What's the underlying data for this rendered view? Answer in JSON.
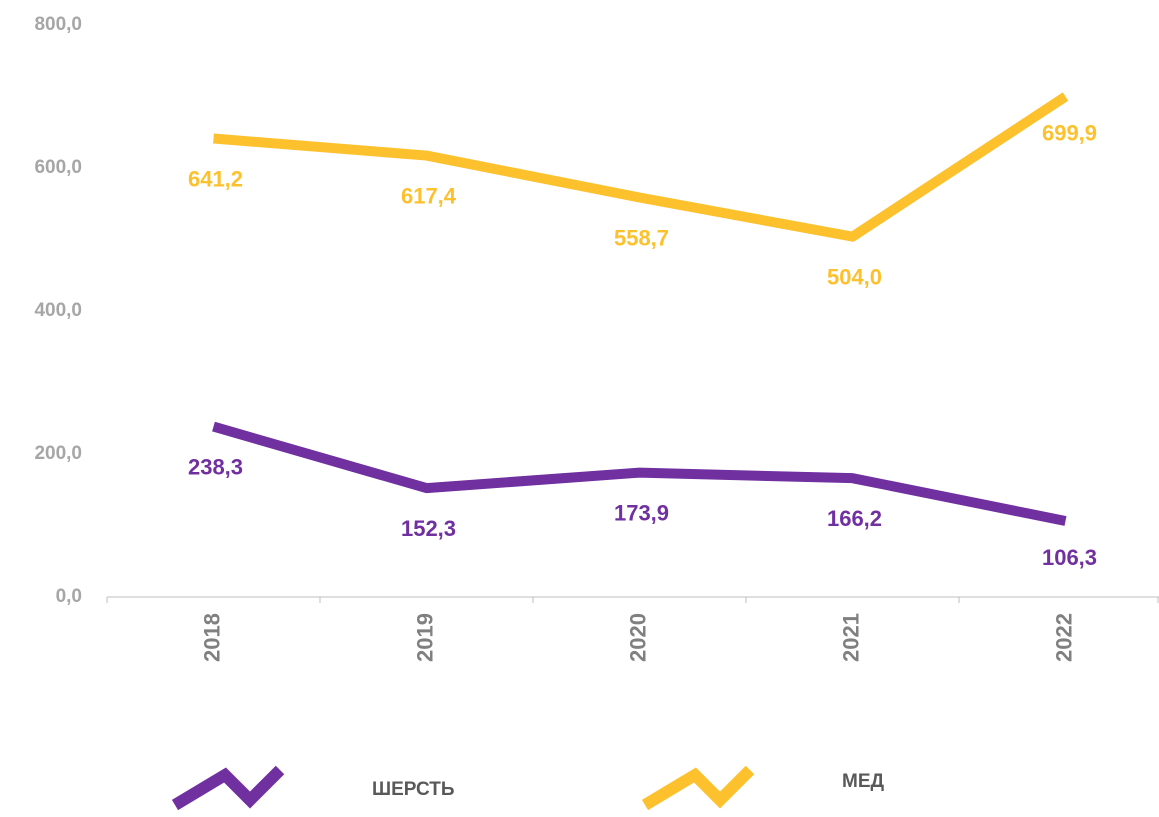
{
  "chart_data": {
    "type": "line",
    "categories": [
      "2018",
      "2019",
      "2020",
      "2021",
      "2022"
    ],
    "series": [
      {
        "name": "ШЕРСТЬ",
        "color": "#7030a0",
        "values": [
          238.3,
          152.3,
          173.9,
          166.2,
          106.3
        ],
        "value_labels": [
          "238,3",
          "152,3",
          "173,9",
          "166,2",
          "106,3"
        ]
      },
      {
        "name": "МЕД",
        "color": "#fcc12d",
        "values": [
          641.2,
          617.4,
          558.7,
          504.0,
          699.9
        ],
        "value_labels": [
          "641,2",
          "617,4",
          "558,7",
          "504,0",
          "699,9"
        ]
      }
    ],
    "ylim": [
      0,
      800
    ],
    "yticks": [
      {
        "value": 0,
        "label": "0,0"
      },
      {
        "value": 200,
        "label": "200,0"
      },
      {
        "value": 400,
        "label": "400,0"
      },
      {
        "value": 600,
        "label": "600,0"
      },
      {
        "value": 800,
        "label": "800,0"
      }
    ],
    "grid": false,
    "legend": "bottom"
  }
}
